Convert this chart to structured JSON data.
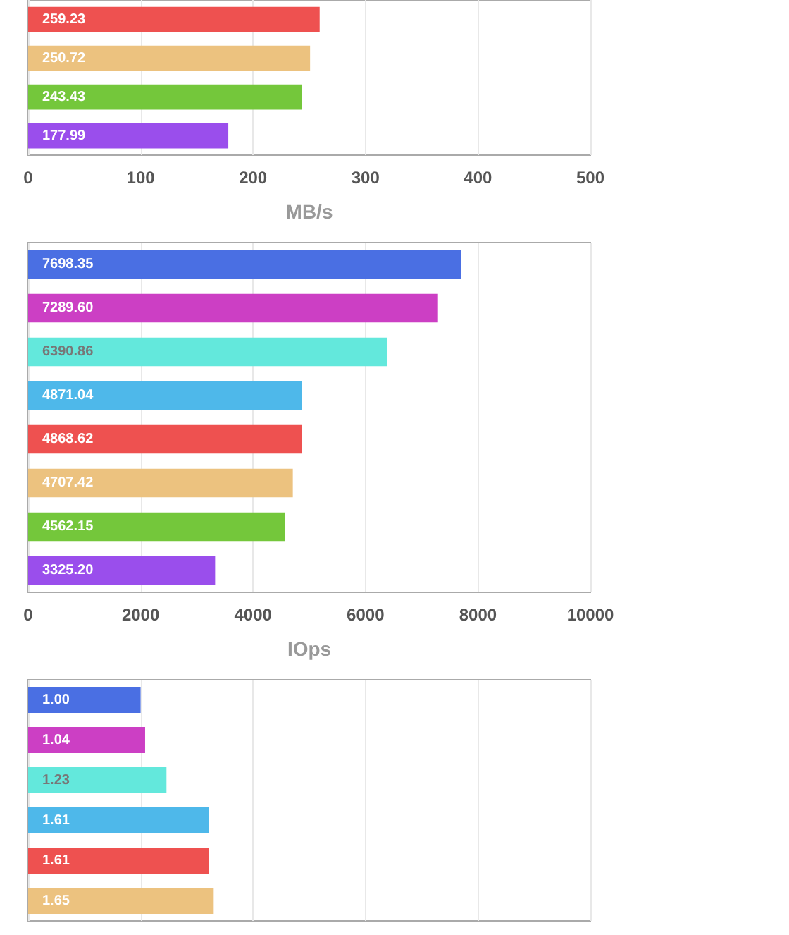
{
  "chart_data": [
    {
      "type": "bar",
      "orientation": "horizontal",
      "xlabel": "MB/s",
      "categories": [
        null,
        null,
        null,
        null
      ],
      "values": [
        259.23,
        250.72,
        243.43,
        177.99
      ],
      "colors": [
        "#ee5150",
        "#ecc27f",
        "#74c73b",
        "#9a4eec"
      ],
      "xlim": [
        0,
        500
      ],
      "xticks": [
        0,
        100,
        200,
        300,
        400,
        500
      ],
      "grid": "x",
      "data_labels": true
    },
    {
      "type": "bar",
      "orientation": "horizontal",
      "xlabel": "IOps",
      "categories": [
        null,
        null,
        null,
        null,
        null,
        null,
        null,
        null
      ],
      "values": [
        7698.35,
        7289.6,
        6390.86,
        4871.04,
        4868.62,
        4707.42,
        4562.15,
        3325.2
      ],
      "colors": [
        "#4a6fe3",
        "#cc3fc4",
        "#63e8dc",
        "#4eb8ea",
        "#ee5150",
        "#ecc27f",
        "#74c73b",
        "#9a4eec"
      ],
      "value_labels": [
        "7698.35",
        "7289.60",
        "6390.86",
        "4871.04",
        "4868.62",
        "4707.42",
        "4562.15",
        "3325.20"
      ],
      "xlim": [
        0,
        10000
      ],
      "xticks": [
        0,
        2000,
        4000,
        6000,
        8000,
        10000
      ],
      "grid": "x"
    },
    {
      "type": "bar",
      "orientation": "horizontal",
      "categories": [
        null,
        null,
        null,
        null,
        null,
        null
      ],
      "values": [
        1.0,
        1.04,
        1.23,
        1.61,
        1.61,
        1.65
      ],
      "colors": [
        "#4a6fe3",
        "#cc3fc4",
        "#63e8dc",
        "#4eb8ea",
        "#ee5150",
        "#ecc27f"
      ],
      "value_labels": [
        "1.00",
        "1.04",
        "1.23",
        "1.61",
        "1.61",
        "1.65"
      ],
      "xlim": [
        0,
        5
      ],
      "xticks": [
        {
          "value": 0,
          "label": null
        },
        {
          "value": 1,
          "label": null
        },
        {
          "value": 2,
          "label": null
        },
        {
          "value": 3,
          "label": null
        },
        {
          "value": 4,
          "label": null
        },
        {
          "value": 5,
          "label": null
        }
      ],
      "grid": "x"
    }
  ]
}
